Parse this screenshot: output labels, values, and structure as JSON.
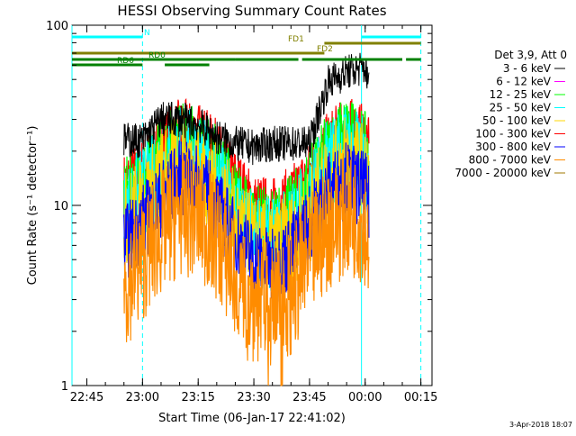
{
  "chart_data": {
    "type": "line",
    "title": "HESSI Observing Summary Count Rates",
    "xlabel": "Start Time (06-Jan-17 22:41:02)",
    "ylabel": "Count Rate (s⁻¹ detector⁻¹)",
    "y_scale": "log",
    "xlim": [
      "22:41",
      "00:18"
    ],
    "ylim": [
      1,
      100
    ],
    "x_ticks": [
      "22:45",
      "23:00",
      "23:15",
      "23:30",
      "23:45",
      "00:00",
      "00:15"
    ],
    "y_ticks": [
      "1",
      "10",
      "100"
    ],
    "timestamp": "3-Apr-2018 18:07",
    "legend": {
      "placement": "right",
      "header": "Det 3,9, Att 0",
      "entries": [
        {
          "name": "3 - 6 keV",
          "color": "#000000"
        },
        {
          "name": "6 - 12 keV",
          "color": "#ff00ff"
        },
        {
          "name": "12 - 25 keV",
          "color": "#00ff00"
        },
        {
          "name": "25 - 50 keV",
          "color": "#00ffff"
        },
        {
          "name": "50 - 100 keV",
          "color": "#ffd700"
        },
        {
          "name": "100 - 300 keV",
          "color": "#ff0000"
        },
        {
          "name": "300 - 800 keV",
          "color": "#0000ff"
        },
        {
          "name": "800 - 7000 keV",
          "color": "#ff8c00"
        },
        {
          "name": "7000 - 20000 keV",
          "color": "#a07800"
        }
      ]
    },
    "flag_bars": [
      {
        "label": "N",
        "color": "#00ffff",
        "segments": [
          [
            "22:41",
            "23:00"
          ],
          [
            "23:59",
            "00:15"
          ]
        ]
      },
      {
        "label": "FD1",
        "color": "#808000",
        "segments": [
          [
            "23:49",
            "00:15"
          ]
        ]
      },
      {
        "label": "FD2",
        "color": "#808000",
        "segments": [
          [
            "22:41",
            "23:49"
          ]
        ]
      },
      {
        "label": "RD0",
        "color": "#008000",
        "segments": [
          [
            "22:41",
            "23:25"
          ],
          [
            "23:25",
            "23:42"
          ],
          [
            "23:43",
            "00:10"
          ],
          [
            "00:11",
            "00:15"
          ]
        ]
      },
      {
        "label": "RD6",
        "color": "#008000",
        "segments": [
          [
            "22:41",
            "23:00"
          ],
          [
            "23:06",
            "23:18"
          ]
        ]
      }
    ],
    "vertical_lines": [
      {
        "time": "22:41",
        "style": "solid",
        "color": "#00ffff"
      },
      {
        "time": "23:00",
        "style": "dashed",
        "color": "#00ffff"
      },
      {
        "time": "23:59",
        "style": "solid",
        "color": "#00ffff"
      },
      {
        "time": "00:15",
        "style": "dashed",
        "color": "#00ffff"
      }
    ],
    "data_start": "22:55",
    "data_end": "00:01",
    "series": [
      {
        "name": "3 - 6 keV",
        "color": "#000000",
        "times": [
          "22:55",
          "23:00",
          "23:05",
          "23:10",
          "23:15",
          "23:20",
          "23:25",
          "23:30",
          "23:35",
          "23:40",
          "23:45",
          "23:50",
          "23:55",
          "00:00",
          "00:01"
        ],
        "values": [
          23,
          23,
          30,
          30,
          28,
          24,
          22,
          21,
          22,
          22,
          22,
          48,
          55,
          58,
          45
        ]
      },
      {
        "name": "100 - 300 keV",
        "color": "#ff0000",
        "times": [
          "22:55",
          "23:00",
          "23:05",
          "23:10",
          "23:15",
          "23:20",
          "23:25",
          "23:30",
          "23:35",
          "23:40",
          "23:45",
          "23:50",
          "23:55",
          "00:00",
          "00:01"
        ],
        "values": [
          13,
          16,
          22,
          26,
          25,
          20,
          14,
          10,
          9.5,
          11,
          15,
          22,
          27,
          24,
          20
        ]
      },
      {
        "name": "12 - 25 keV",
        "color": "#00ff00",
        "times": [
          "22:55",
          "23:00",
          "23:05",
          "23:10",
          "23:15",
          "23:20",
          "23:25",
          "23:30",
          "23:35",
          "23:40",
          "23:45",
          "23:50",
          "23:55",
          "00:00",
          "00:01"
        ],
        "values": [
          11,
          14,
          19,
          23,
          22,
          17,
          11,
          8,
          7.5,
          9,
          13,
          20,
          25,
          20,
          16
        ]
      },
      {
        "name": "25 - 50 keV",
        "color": "#00ffff",
        "times": [
          "22:55",
          "23:00",
          "23:05",
          "23:10",
          "23:15",
          "23:20",
          "23:25",
          "23:30",
          "23:35",
          "23:40",
          "23:45",
          "23:50",
          "23:55",
          "00:00",
          "00:01"
        ],
        "values": [
          9,
          12,
          16,
          20,
          19,
          14,
          9,
          6.5,
          6,
          7.5,
          11,
          17,
          21,
          17,
          14
        ]
      },
      {
        "name": "50 - 100 keV",
        "color": "#ffd700",
        "times": [
          "22:55",
          "23:00",
          "23:05",
          "23:10",
          "23:15",
          "23:20",
          "23:25",
          "23:30",
          "23:35",
          "23:40",
          "23:45",
          "23:50",
          "23:55",
          "00:00",
          "00:01"
        ],
        "values": [
          8,
          10,
          14,
          17,
          16,
          12,
          8,
          6,
          5.5,
          6.5,
          9,
          14,
          18,
          15,
          12
        ]
      },
      {
        "name": "300 - 800 keV",
        "color": "#0000ff",
        "times": [
          "22:55",
          "23:00",
          "23:05",
          "23:10",
          "23:15",
          "23:20",
          "23:25",
          "23:30",
          "23:35",
          "23:40",
          "23:45",
          "23:50",
          "23:55",
          "00:00",
          "00:01"
        ],
        "values": [
          6,
          8,
          11,
          14,
          13,
          10,
          6.5,
          5,
          4.5,
          5.5,
          8,
          12,
          14,
          12,
          10
        ]
      },
      {
        "name": "800 - 7000 keV",
        "color": "#ff8c00",
        "times": [
          "22:55",
          "23:00",
          "23:05",
          "23:10",
          "23:15",
          "23:20",
          "23:25",
          "23:30",
          "23:35",
          "23:40",
          "23:45",
          "23:50",
          "23:55",
          "00:00",
          "00:01"
        ],
        "values": [
          3.5,
          5,
          7,
          9,
          8.5,
          6.5,
          4,
          3,
          2.8,
          3.3,
          5,
          7.5,
          9,
          8,
          6
        ]
      }
    ]
  }
}
